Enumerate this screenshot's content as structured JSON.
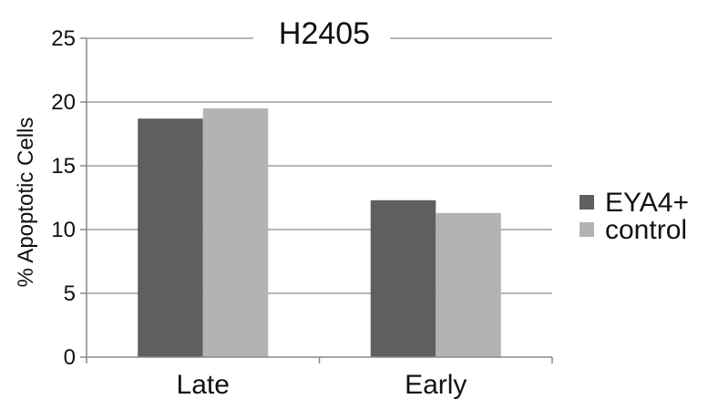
{
  "chart_data": {
    "type": "bar",
    "title": "H2405",
    "xlabel": "",
    "ylabel": "% Apoptotic Cells",
    "categories": [
      "Late",
      "Early"
    ],
    "series": [
      {
        "name": "EYA4+",
        "values": [
          18.7,
          12.3
        ],
        "color": "#5f5f5f"
      },
      {
        "name": "control",
        "values": [
          19.5,
          11.3
        ],
        "color": "#b3b3b3"
      }
    ],
    "ylim": [
      0,
      25
    ],
    "yticks": [
      0,
      5,
      10,
      15,
      20,
      25
    ],
    "grid": true,
    "legend_position": "right"
  }
}
